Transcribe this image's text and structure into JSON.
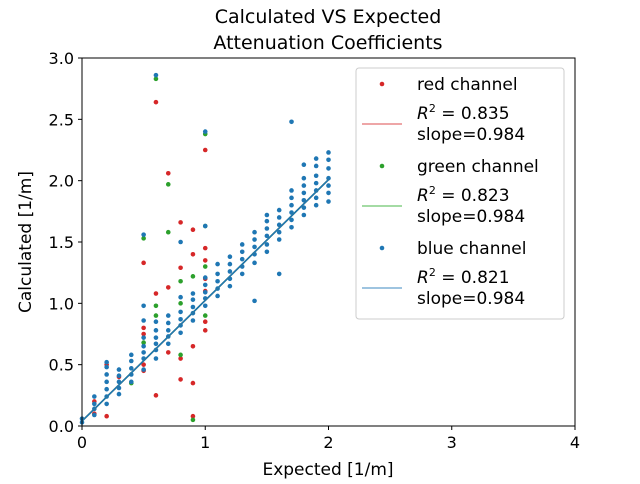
{
  "chart_data": {
    "type": "scatter",
    "title": [
      "Calculated VS Expected",
      "Attenuation Coefficients"
    ],
    "xlabel": "Expected [1/m]",
    "ylabel": "Calculated [1/m]",
    "xlim": [
      0,
      4
    ],
    "ylim": [
      0,
      3.0
    ],
    "x_ticks": [
      0,
      1,
      2,
      3,
      4
    ],
    "x_tick_labels": [
      "0",
      "1",
      "2",
      "3",
      "4"
    ],
    "y_ticks": [
      0,
      0.5,
      1.0,
      1.5,
      2.0,
      2.5,
      3.0
    ],
    "y_tick_labels": [
      "0.0",
      "0.5",
      "1.0",
      "1.5",
      "2.0",
      "2.5",
      "3.0"
    ],
    "grid": false,
    "legend_position": "top-right",
    "legend": [
      {
        "kind": "marker",
        "series": "red",
        "label": "red channel"
      },
      {
        "kind": "line",
        "series": "red",
        "r2_value": "0.835",
        "slope": "slope=0.984"
      },
      {
        "kind": "marker",
        "series": "green",
        "label": "green channel"
      },
      {
        "kind": "line",
        "series": "green",
        "r2_value": "0.823",
        "slope": "slope=0.984"
      },
      {
        "kind": "marker",
        "series": "blue",
        "label": "blue channel"
      },
      {
        "kind": "line",
        "series": "blue",
        "r2_value": " 0.821",
        "slope": "slope=0.984"
      }
    ],
    "colors": {
      "red": "#d62728",
      "green": "#2ca02c",
      "blue": "#1f77b4",
      "red_fit": "#e8898a",
      "green_fit": "#86cf86",
      "blue_fit": "#7fb0d6"
    },
    "fit_lines": {
      "x_range": [
        0,
        2.0
      ],
      "red": {
        "slope": 0.984,
        "intercept": 0.04
      },
      "green": {
        "slope": 0.984,
        "intercept": 0.04
      },
      "blue": {
        "slope": 0.984,
        "intercept": 0.04
      }
    },
    "series": [
      {
        "name": "red channel",
        "color_key": "red",
        "points": [
          [
            0.1,
            0.1
          ],
          [
            0.1,
            0.2
          ],
          [
            0.2,
            0.08
          ],
          [
            0.2,
            0.5
          ],
          [
            0.3,
            0.4
          ],
          [
            0.5,
            1.33
          ],
          [
            0.5,
            0.8
          ],
          [
            0.5,
            0.45
          ],
          [
            0.6,
            2.64
          ],
          [
            0.6,
            0.25
          ],
          [
            0.6,
            1.08
          ],
          [
            0.7,
            2.06
          ],
          [
            0.7,
            0.6
          ],
          [
            0.7,
            1.13
          ],
          [
            0.8,
            1.66
          ],
          [
            0.8,
            0.38
          ],
          [
            0.8,
            1.29
          ],
          [
            0.8,
            0.55
          ],
          [
            0.9,
            0.35
          ],
          [
            0.9,
            1.6
          ],
          [
            0.9,
            0.08
          ],
          [
            0.9,
            1.4
          ],
          [
            1.0,
            2.25
          ],
          [
            1.0,
            1.45
          ],
          [
            1.0,
            0.78
          ],
          [
            1.0,
            1.35
          ],
          [
            1.0,
            1.2
          ],
          [
            1.0,
            0.85
          ],
          [
            0.5,
            0.75
          ],
          [
            0.5,
            0.5
          ],
          [
            0.9,
            0.65
          ],
          [
            1.0,
            1.1
          ]
        ]
      },
      {
        "name": "green channel",
        "color_key": "green",
        "points": [
          [
            0.5,
            1.53
          ],
          [
            0.6,
            2.83
          ],
          [
            0.7,
            1.97
          ],
          [
            0.7,
            1.58
          ],
          [
            0.8,
            1.18
          ],
          [
            0.8,
            1.0
          ],
          [
            0.9,
            0.05
          ],
          [
            0.9,
            1.22
          ],
          [
            1.0,
            2.38
          ],
          [
            1.0,
            1.63
          ],
          [
            1.0,
            1.3
          ],
          [
            1.0,
            0.9
          ],
          [
            0.6,
            0.98
          ],
          [
            0.6,
            0.9
          ],
          [
            0.5,
            0.68
          ],
          [
            0.8,
            0.58
          ],
          [
            0.4,
            0.35
          ]
        ]
      },
      {
        "name": "blue channel",
        "color_key": "blue",
        "points": [
          [
            0.0,
            0.03
          ],
          [
            0.0,
            0.06
          ],
          [
            0.1,
            0.09
          ],
          [
            0.1,
            0.14
          ],
          [
            0.1,
            0.18
          ],
          [
            0.1,
            0.24
          ],
          [
            0.2,
            0.18
          ],
          [
            0.2,
            0.24
          ],
          [
            0.2,
            0.3
          ],
          [
            0.2,
            0.36
          ],
          [
            0.2,
            0.42
          ],
          [
            0.2,
            0.48
          ],
          [
            0.2,
            0.52
          ],
          [
            0.3,
            0.26
          ],
          [
            0.3,
            0.31
          ],
          [
            0.3,
            0.36
          ],
          [
            0.3,
            0.41
          ],
          [
            0.3,
            0.46
          ],
          [
            0.4,
            0.36
          ],
          [
            0.4,
            0.42
          ],
          [
            0.4,
            0.47
          ],
          [
            0.4,
            0.53
          ],
          [
            0.4,
            0.58
          ],
          [
            0.5,
            0.46
          ],
          [
            0.5,
            0.55
          ],
          [
            0.5,
            0.6
          ],
          [
            0.5,
            0.65
          ],
          [
            0.5,
            0.72
          ],
          [
            0.5,
            0.86
          ],
          [
            0.5,
            0.98
          ],
          [
            0.5,
            1.56
          ],
          [
            0.6,
            0.55
          ],
          [
            0.6,
            0.62
          ],
          [
            0.6,
            0.67
          ],
          [
            0.6,
            0.72
          ],
          [
            0.6,
            0.78
          ],
          [
            0.6,
            0.85
          ],
          [
            0.6,
            2.86
          ],
          [
            0.7,
            0.67
          ],
          [
            0.7,
            0.73
          ],
          [
            0.7,
            0.78
          ],
          [
            0.7,
            0.84
          ],
          [
            0.7,
            0.9
          ],
          [
            0.8,
            0.76
          ],
          [
            0.8,
            0.82
          ],
          [
            0.8,
            0.87
          ],
          [
            0.8,
            0.93
          ],
          [
            0.8,
            1.05
          ],
          [
            0.8,
            1.5
          ],
          [
            0.9,
            0.86
          ],
          [
            0.9,
            0.92
          ],
          [
            0.9,
            0.97
          ],
          [
            0.9,
            1.03
          ],
          [
            0.9,
            1.08
          ],
          [
            1.0,
            0.98
          ],
          [
            1.0,
            1.04
          ],
          [
            1.0,
            1.09
          ],
          [
            1.0,
            1.15
          ],
          [
            1.0,
            1.21
          ],
          [
            1.0,
            1.63
          ],
          [
            1.0,
            2.4
          ],
          [
            1.1,
            1.06
          ],
          [
            1.1,
            1.12
          ],
          [
            1.1,
            1.18
          ],
          [
            1.1,
            1.24
          ],
          [
            1.1,
            1.32
          ],
          [
            1.2,
            1.14
          ],
          [
            1.2,
            1.2
          ],
          [
            1.2,
            1.26
          ],
          [
            1.2,
            1.32
          ],
          [
            1.2,
            1.38
          ],
          [
            1.3,
            1.24
          ],
          [
            1.3,
            1.3
          ],
          [
            1.3,
            1.36
          ],
          [
            1.3,
            1.42
          ],
          [
            1.3,
            1.48
          ],
          [
            1.4,
            1.02
          ],
          [
            1.4,
            1.33
          ],
          [
            1.4,
            1.4
          ],
          [
            1.4,
            1.46
          ],
          [
            1.4,
            1.52
          ],
          [
            1.4,
            1.58
          ],
          [
            1.5,
            1.42
          ],
          [
            1.5,
            1.48
          ],
          [
            1.5,
            1.55
          ],
          [
            1.5,
            1.61
          ],
          [
            1.5,
            1.67
          ],
          [
            1.5,
            1.72
          ],
          [
            1.6,
            1.24
          ],
          [
            1.6,
            1.52
          ],
          [
            1.6,
            1.58
          ],
          [
            1.6,
            1.64
          ],
          [
            1.6,
            1.7
          ],
          [
            1.6,
            1.76
          ],
          [
            1.7,
            1.62
          ],
          [
            1.7,
            1.68
          ],
          [
            1.7,
            1.74
          ],
          [
            1.7,
            1.8
          ],
          [
            1.7,
            1.86
          ],
          [
            1.7,
            1.92
          ],
          [
            1.7,
            2.48
          ],
          [
            1.8,
            1.72
          ],
          [
            1.8,
            1.78
          ],
          [
            1.8,
            1.84
          ],
          [
            1.8,
            1.9
          ],
          [
            1.8,
            1.96
          ],
          [
            1.8,
            2.02
          ],
          [
            1.8,
            2.13
          ],
          [
            1.9,
            1.8
          ],
          [
            1.9,
            1.86
          ],
          [
            1.9,
            1.92
          ],
          [
            1.9,
            1.98
          ],
          [
            1.9,
            2.04
          ],
          [
            1.9,
            2.12
          ],
          [
            1.9,
            2.18
          ],
          [
            2.0,
            1.83
          ],
          [
            2.0,
            1.9
          ],
          [
            2.0,
            1.96
          ],
          [
            2.0,
            2.02
          ],
          [
            2.0,
            2.1
          ],
          [
            2.0,
            2.17
          ],
          [
            2.0,
            2.23
          ]
        ]
      }
    ]
  }
}
